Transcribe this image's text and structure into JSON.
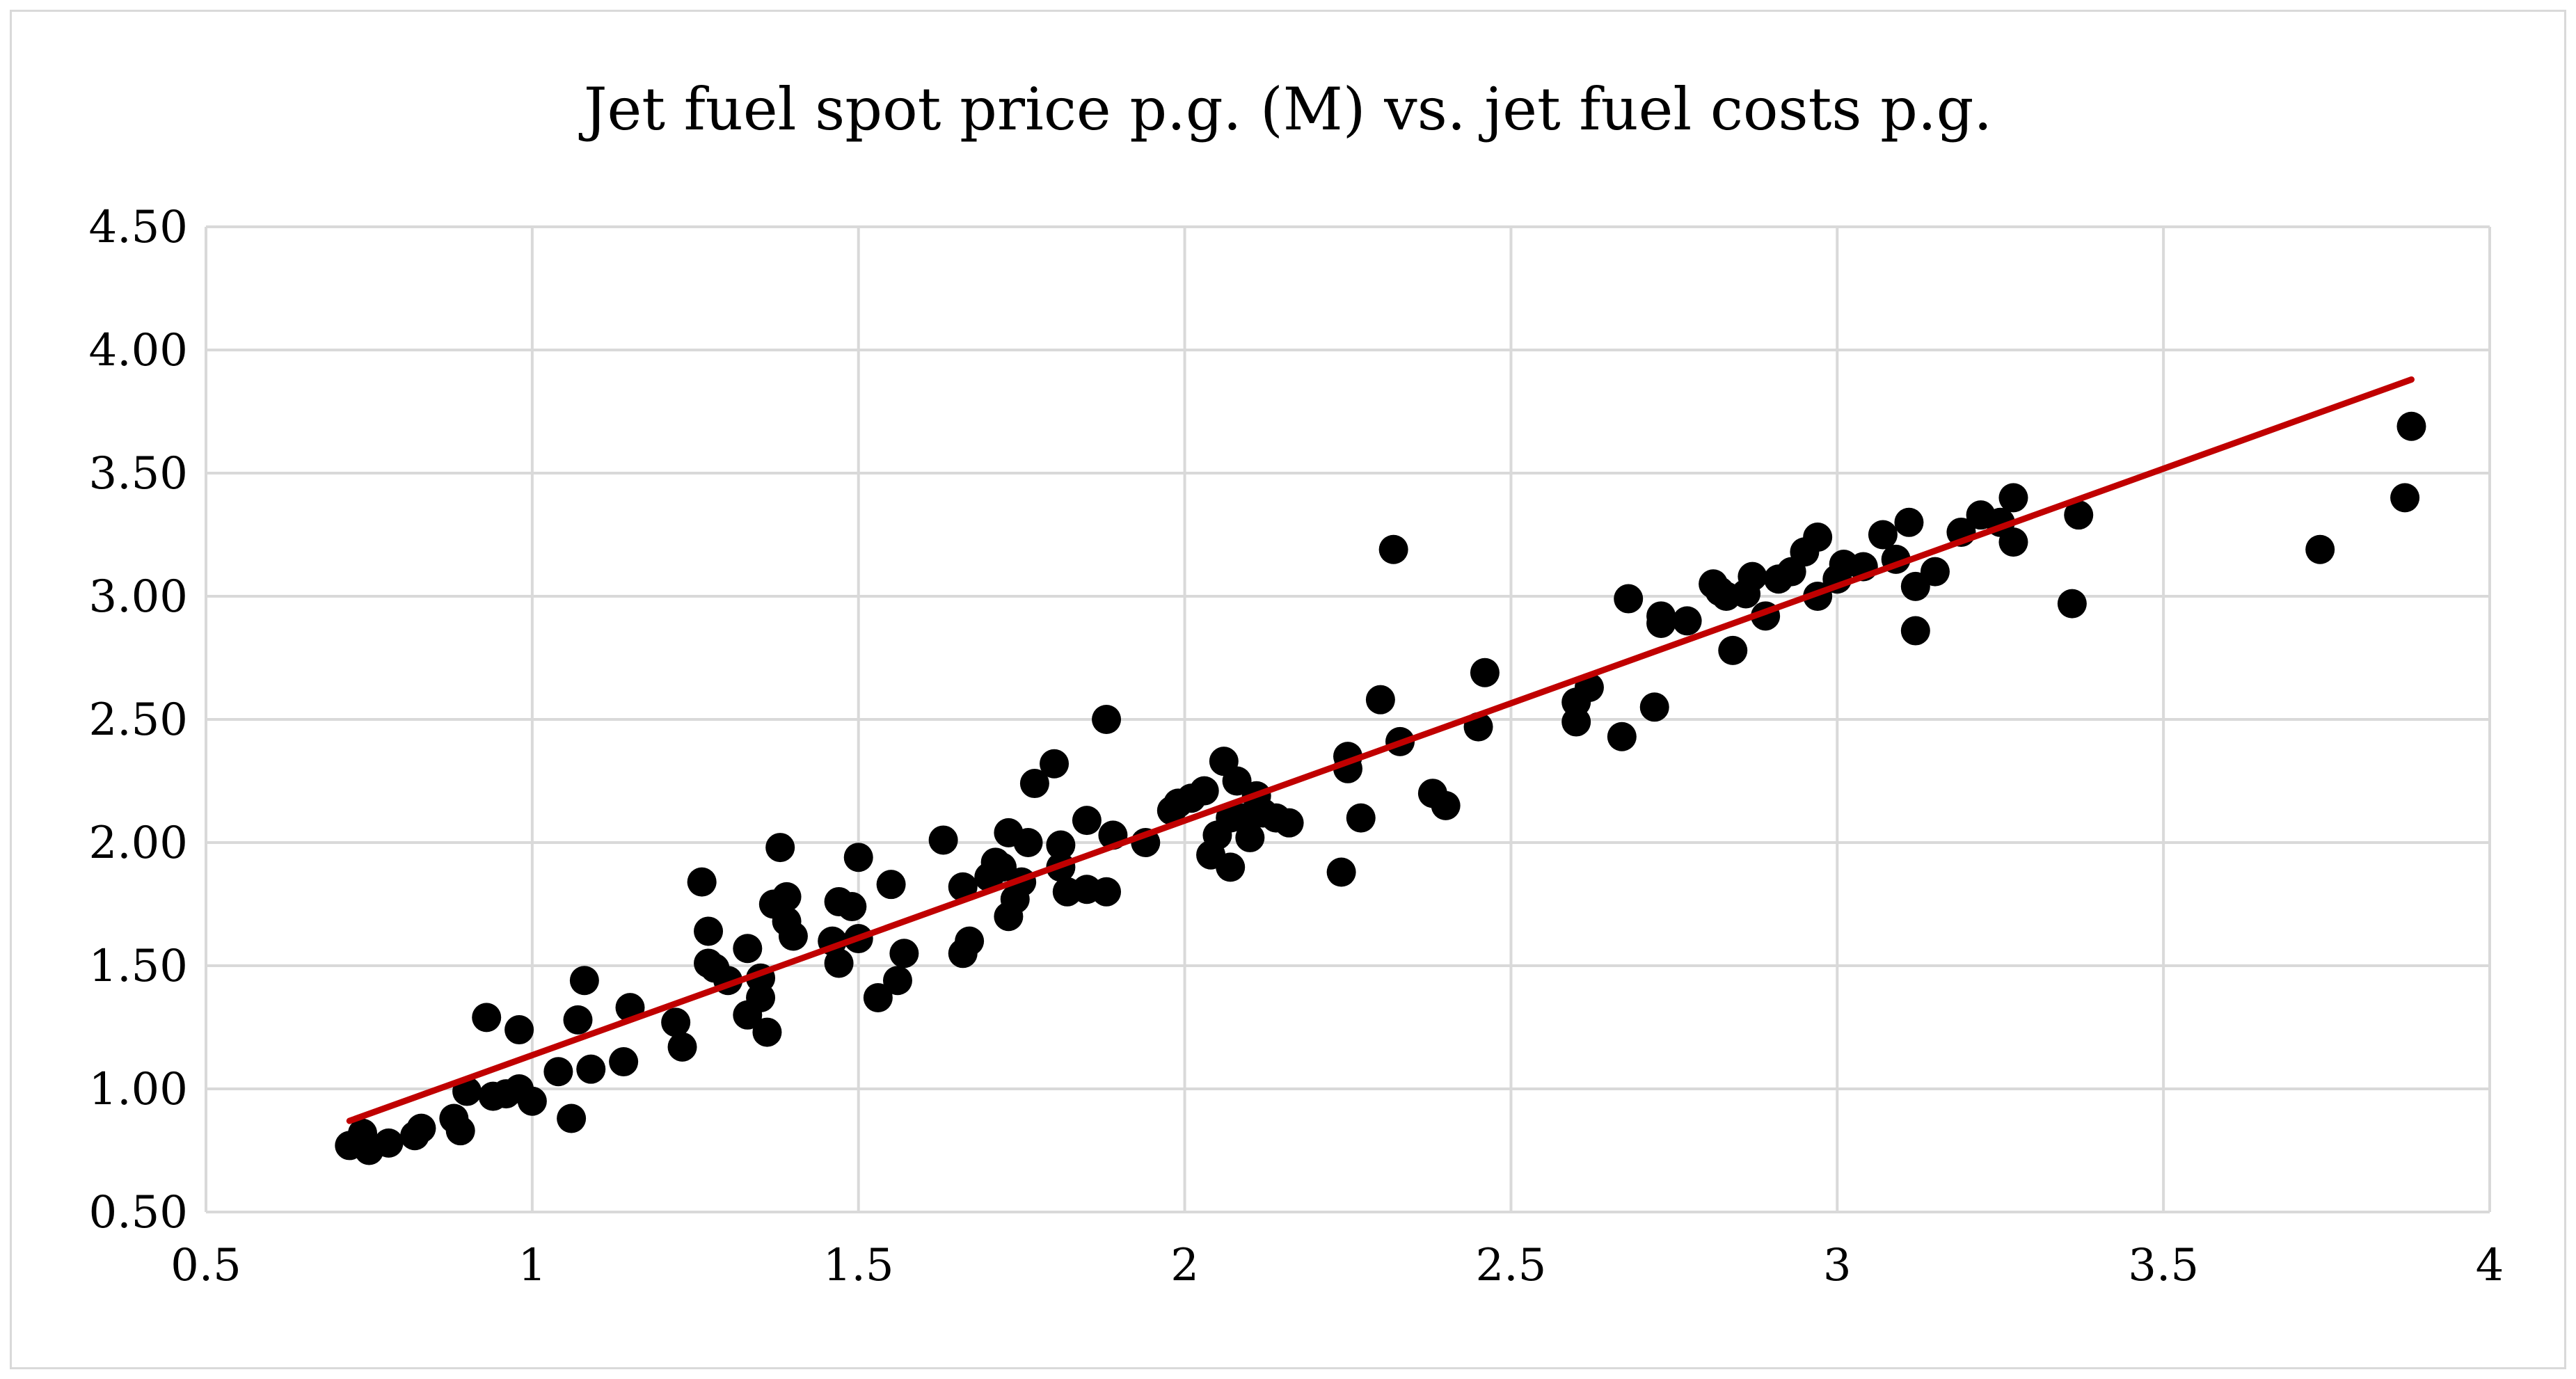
{
  "chart_data": {
    "type": "scatter",
    "title": "Jet fuel spot price p.g. (M) vs. jet fuel costs p.g.",
    "xlabel": "",
    "ylabel": "",
    "xlim": [
      0.5,
      4
    ],
    "ylim": [
      0.5,
      4.5
    ],
    "x_ticks": [
      0.5,
      1,
      1.5,
      2,
      2.5,
      3,
      3.5,
      4
    ],
    "x_tick_labels": [
      "0.5",
      "1",
      "1.5",
      "2",
      "2.5",
      "3",
      "3.5",
      "4"
    ],
    "y_ticks": [
      0.5,
      1.0,
      1.5,
      2.0,
      2.5,
      3.0,
      3.5,
      4.0,
      4.5
    ],
    "y_tick_labels": [
      "0.50",
      "1.00",
      "1.50",
      "2.00",
      "2.50",
      "3.00",
      "3.50",
      "4.00",
      "4.50"
    ],
    "grid": true,
    "legend": false,
    "point_color": "#000000",
    "trendline_color": "#c00000",
    "gridline_color": "#d9d9d9",
    "trendline": {
      "x": [
        0.72,
        3.88
      ],
      "y": [
        0.87,
        3.88
      ]
    },
    "series": [
      {
        "points": [
          [
            0.72,
            0.77
          ],
          [
            0.74,
            0.82
          ],
          [
            0.75,
            0.75
          ],
          [
            0.78,
            0.78
          ],
          [
            0.82,
            0.81
          ],
          [
            0.83,
            0.84
          ],
          [
            0.88,
            0.88
          ],
          [
            0.89,
            0.83
          ],
          [
            0.9,
            0.99
          ],
          [
            0.93,
            1.29
          ],
          [
            0.94,
            0.97
          ],
          [
            0.96,
            0.98
          ],
          [
            0.98,
            1.0
          ],
          [
            0.98,
            1.24
          ],
          [
            1.0,
            0.95
          ],
          [
            1.04,
            1.07
          ],
          [
            1.06,
            0.88
          ],
          [
            1.07,
            1.28
          ],
          [
            1.08,
            1.44
          ],
          [
            1.09,
            1.08
          ],
          [
            1.14,
            1.11
          ],
          [
            1.15,
            1.33
          ],
          [
            1.22,
            1.27
          ],
          [
            1.23,
            1.17
          ],
          [
            1.26,
            1.84
          ],
          [
            1.27,
            1.64
          ],
          [
            1.27,
            1.51
          ],
          [
            1.28,
            1.49
          ],
          [
            1.3,
            1.44
          ],
          [
            1.33,
            1.57
          ],
          [
            1.33,
            1.3
          ],
          [
            1.35,
            1.37
          ],
          [
            1.35,
            1.45
          ],
          [
            1.36,
            1.23
          ],
          [
            1.37,
            1.75
          ],
          [
            1.38,
            1.98
          ],
          [
            1.39,
            1.78
          ],
          [
            1.39,
            1.68
          ],
          [
            1.4,
            1.62
          ],
          [
            1.46,
            1.6
          ],
          [
            1.47,
            1.51
          ],
          [
            1.47,
            1.76
          ],
          [
            1.49,
            1.74
          ],
          [
            1.5,
            1.61
          ],
          [
            1.5,
            1.94
          ],
          [
            1.53,
            1.37
          ],
          [
            1.55,
            1.83
          ],
          [
            1.56,
            1.44
          ],
          [
            1.57,
            1.55
          ],
          [
            1.63,
            2.01
          ],
          [
            1.66,
            1.55
          ],
          [
            1.66,
            1.82
          ],
          [
            1.67,
            1.6
          ],
          [
            1.7,
            1.86
          ],
          [
            1.71,
            1.92
          ],
          [
            1.72,
            1.9
          ],
          [
            1.73,
            1.7
          ],
          [
            1.73,
            2.04
          ],
          [
            1.74,
            1.77
          ],
          [
            1.75,
            1.84
          ],
          [
            1.76,
            2.0
          ],
          [
            1.77,
            2.24
          ],
          [
            1.8,
            2.32
          ],
          [
            1.81,
            1.9
          ],
          [
            1.81,
            1.99
          ],
          [
            1.82,
            1.8
          ],
          [
            1.85,
            1.81
          ],
          [
            1.85,
            2.09
          ],
          [
            1.88,
            1.8
          ],
          [
            1.88,
            2.5
          ],
          [
            1.89,
            2.03
          ],
          [
            1.94,
            2.0
          ],
          [
            1.98,
            2.13
          ],
          [
            1.99,
            2.16
          ],
          [
            2.01,
            2.18
          ],
          [
            2.03,
            2.21
          ],
          [
            2.04,
            1.95
          ],
          [
            2.05,
            2.03
          ],
          [
            2.06,
            2.33
          ],
          [
            2.07,
            1.9
          ],
          [
            2.07,
            2.1
          ],
          [
            2.08,
            2.25
          ],
          [
            2.09,
            2.1
          ],
          [
            2.1,
            2.02
          ],
          [
            2.11,
            2.19
          ],
          [
            2.12,
            2.12
          ],
          [
            2.14,
            2.1
          ],
          [
            2.16,
            2.08
          ],
          [
            2.24,
            1.88
          ],
          [
            2.25,
            2.3
          ],
          [
            2.25,
            2.35
          ],
          [
            2.27,
            2.1
          ],
          [
            2.3,
            2.58
          ],
          [
            2.32,
            3.19
          ],
          [
            2.33,
            2.41
          ],
          [
            2.38,
            2.2
          ],
          [
            2.4,
            2.15
          ],
          [
            2.45,
            2.47
          ],
          [
            2.46,
            2.69
          ],
          [
            2.6,
            2.49
          ],
          [
            2.6,
            2.57
          ],
          [
            2.62,
            2.63
          ],
          [
            2.67,
            2.43
          ],
          [
            2.68,
            2.99
          ],
          [
            2.72,
            2.55
          ],
          [
            2.73,
            2.92
          ],
          [
            2.73,
            2.89
          ],
          [
            2.77,
            2.9
          ],
          [
            2.81,
            3.05
          ],
          [
            2.82,
            3.02
          ],
          [
            2.83,
            3.0
          ],
          [
            2.84,
            2.78
          ],
          [
            2.86,
            3.01
          ],
          [
            2.87,
            3.08
          ],
          [
            2.89,
            2.92
          ],
          [
            2.91,
            3.07
          ],
          [
            2.93,
            3.1
          ],
          [
            2.95,
            3.18
          ],
          [
            2.97,
            3.0
          ],
          [
            2.97,
            3.24
          ],
          [
            3.0,
            3.07
          ],
          [
            3.01,
            3.13
          ],
          [
            3.04,
            3.12
          ],
          [
            3.07,
            3.25
          ],
          [
            3.09,
            3.15
          ],
          [
            3.11,
            3.3
          ],
          [
            3.12,
            2.86
          ],
          [
            3.12,
            3.04
          ],
          [
            3.15,
            3.1
          ],
          [
            3.19,
            3.26
          ],
          [
            3.22,
            3.33
          ],
          [
            3.25,
            3.3
          ],
          [
            3.27,
            3.22
          ],
          [
            3.27,
            3.4
          ],
          [
            3.36,
            2.97
          ],
          [
            3.37,
            3.33
          ],
          [
            3.74,
            3.19
          ],
          [
            3.87,
            3.4
          ],
          [
            3.88,
            3.69
          ]
        ]
      }
    ]
  }
}
